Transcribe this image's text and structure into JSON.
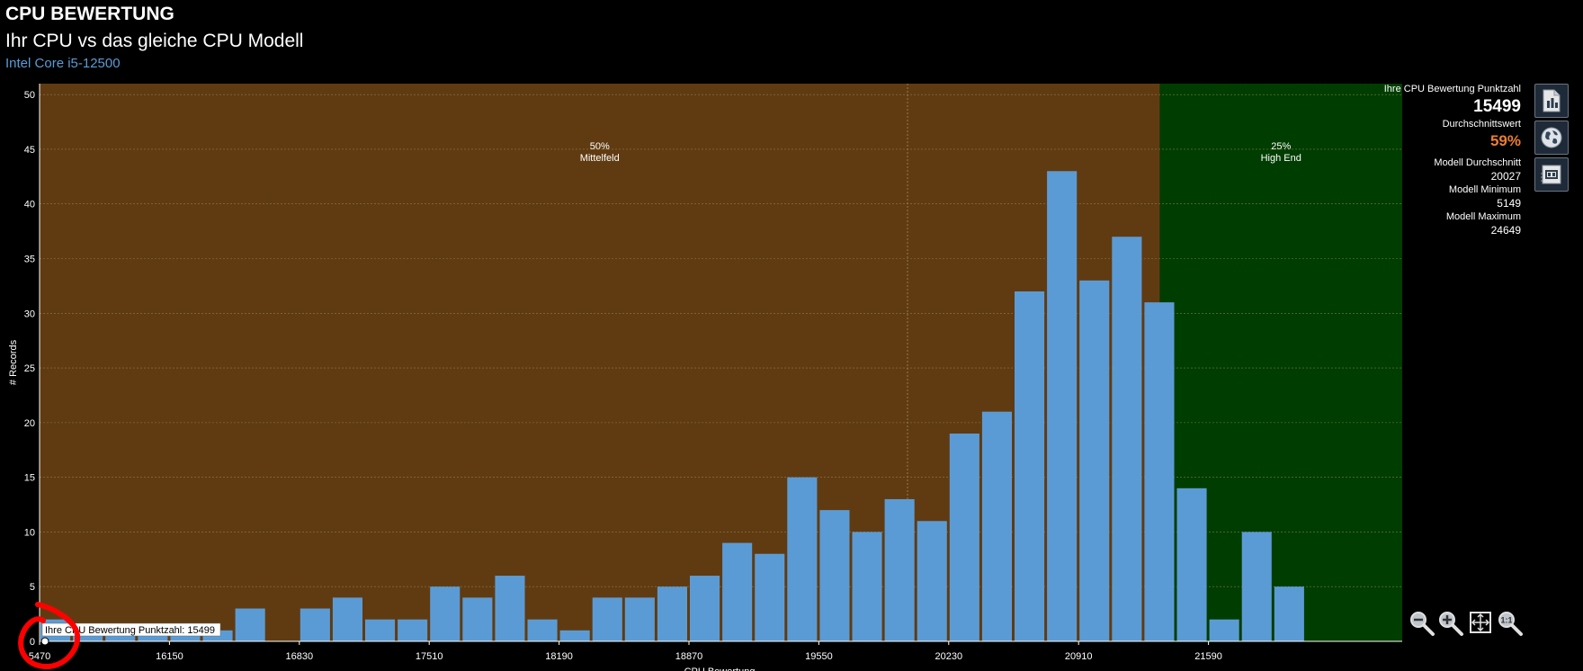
{
  "header": {
    "title": "CPU BEWERTUNG",
    "subtitle": "Ihr CPU vs das gleiche CPU Modell",
    "cpu_model": "Intel Core i5-12500"
  },
  "stats": {
    "score_label": "Ihre CPU Bewertung Punktzahl",
    "score_value": "15499",
    "avg_label": "Durchschnittswert",
    "avg_value": "59%",
    "model_avg_label": "Modell Durchschnitt",
    "model_avg_value": "20027",
    "model_min_label": "Modell Minimum",
    "model_min_value": "5149",
    "model_max_label": "Modell Maximum",
    "model_max_value": "24649"
  },
  "side_buttons": [
    {
      "name": "report-icon"
    },
    {
      "name": "globe-icon"
    },
    {
      "name": "cpu-chip-icon"
    }
  ],
  "zoom_controls": [
    {
      "name": "zoom-out-icon"
    },
    {
      "name": "zoom-in-icon"
    },
    {
      "name": "zoom-fit-icon"
    },
    {
      "name": "zoom-reset-icon"
    }
  ],
  "colors": {
    "bar": "#5b9bd5",
    "mid_zone": "#603b11",
    "high_zone": "#003d00",
    "accent_orange": "#ed7d31",
    "model_link": "#5b9bd5"
  },
  "chart_data": {
    "type": "bar",
    "xlabel": "CPU Bewertung",
    "ylabel": "# Records",
    "x_ticks": [
      "5470",
      "16150",
      "16830",
      "17510",
      "18190",
      "18870",
      "19550",
      "20230",
      "20910",
      "21590"
    ],
    "y_ticks": [
      0,
      5,
      10,
      15,
      20,
      25,
      30,
      35,
      40,
      45,
      50
    ],
    "ylim": [
      0,
      51
    ],
    "grid": true,
    "values": [
      2,
      1,
      1,
      1,
      1,
      1,
      3,
      0,
      3,
      4,
      2,
      2,
      5,
      4,
      6,
      2,
      1,
      4,
      4,
      5,
      6,
      9,
      8,
      15,
      12,
      10,
      13,
      11,
      19,
      21,
      32,
      43,
      33,
      37,
      31,
      14,
      2,
      10,
      5
    ],
    "zones": [
      {
        "label_pct": "50%",
        "label_name": "Mittelfeld",
        "start_bin": 0,
        "end_bin": 34.5
      },
      {
        "label_pct": "25%",
        "label_name": "High End",
        "start_bin": 34.5,
        "end_bin": 42
      }
    ],
    "marker": {
      "label": "Ihre CPU Bewertung Punktzahl: 15499",
      "bin": 0,
      "value": 0
    }
  }
}
